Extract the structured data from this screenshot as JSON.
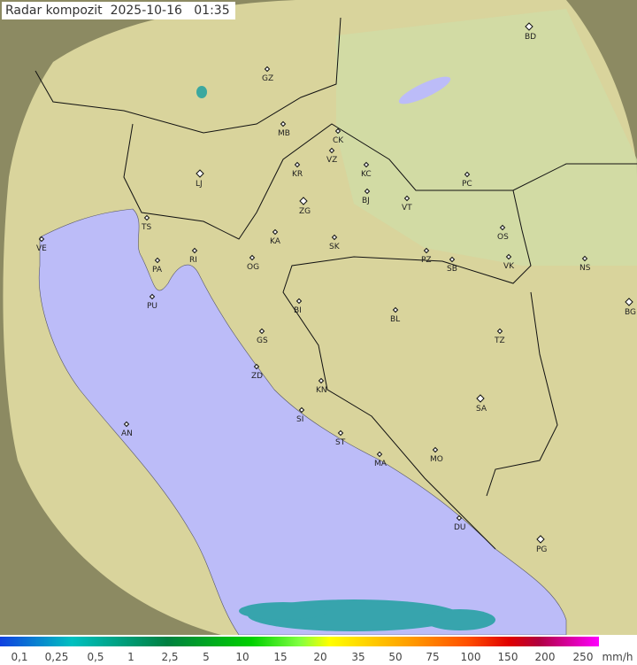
{
  "title": "Radar kompozit  2025-10-16   01:35",
  "cities": [
    "GZ",
    "MB",
    "CK",
    "VZ",
    "KR",
    "KC",
    "LJ",
    "BJ",
    "VT",
    "PC",
    "ZG",
    "TS",
    "KA",
    "SK",
    "OS",
    "VE",
    "RI",
    "PA",
    "OG",
    "PZ",
    "SB",
    "VK",
    "NS",
    "PU",
    "BI",
    "BL",
    "BG",
    "GS",
    "TZ",
    "ZD",
    "KN",
    "SA",
    "SI",
    "AN",
    "ST",
    "MA",
    "MO",
    "DU",
    "PG",
    "BD"
  ],
  "legend": {
    "labels": [
      "0,1",
      "0,25",
      "0,5",
      "1",
      "2,5",
      "5",
      "10",
      "15",
      "20",
      "35",
      "50",
      "75",
      "100",
      "150",
      "200",
      "250"
    ],
    "unit": "mm/h"
  },
  "colors": {
    "sea": "#bcbcf8",
    "land": "#d9d49c",
    "outside": "#8c8a62",
    "rain": "#20a0a0"
  }
}
